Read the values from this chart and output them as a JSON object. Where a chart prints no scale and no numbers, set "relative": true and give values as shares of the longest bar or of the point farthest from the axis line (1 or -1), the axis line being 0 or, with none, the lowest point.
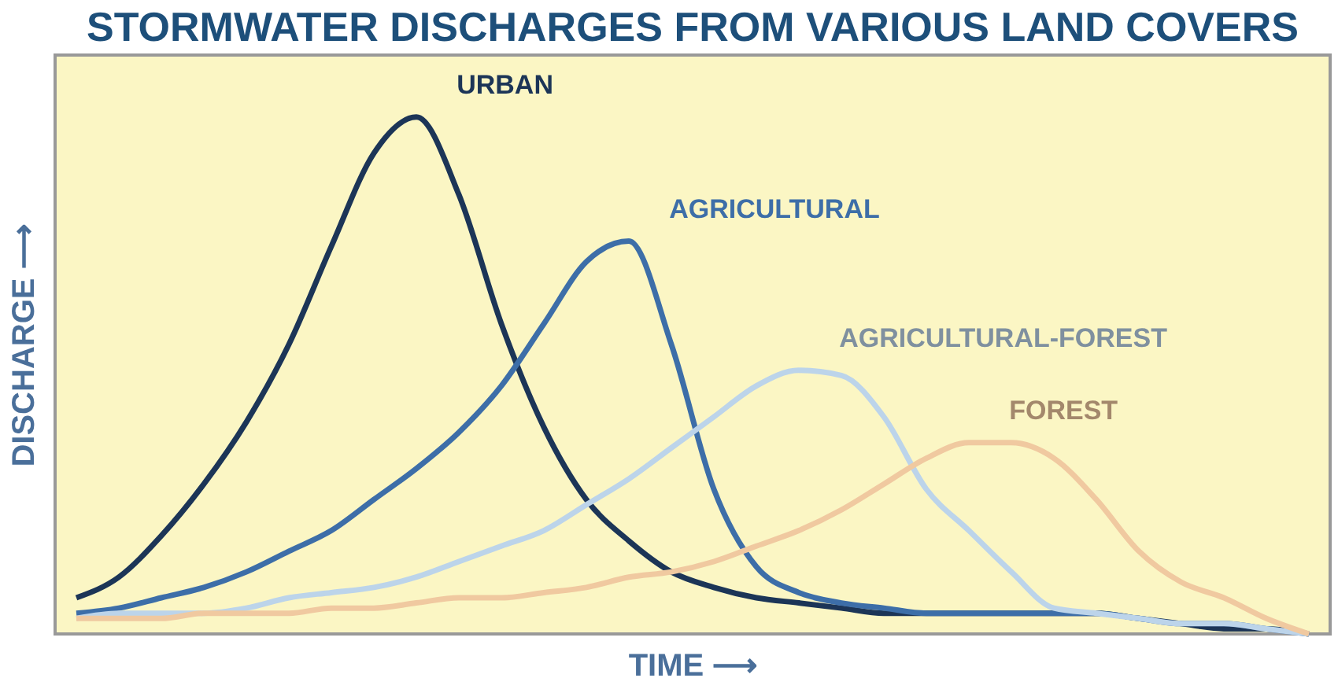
{
  "chart_data": {
    "type": "line",
    "title": "STORMWATER DISCHARGES FROM VARIOUS LAND COVERS",
    "xlabel": "TIME ⟶",
    "ylabel": "DISCHARGE ⟶",
    "relative": true,
    "grid": false,
    "marker": "none",
    "line_style": "solid",
    "categories": [
      null,
      null,
      null,
      null,
      null,
      null,
      null,
      null,
      null,
      null,
      null,
      null,
      null,
      null,
      null,
      null,
      null,
      null,
      null,
      null,
      null,
      null,
      null,
      null,
      null,
      null,
      null,
      null,
      null,
      null
    ],
    "series": [
      {
        "name": "URBAN",
        "color": "#1c3557",
        "values": [
          0.07,
          0.11,
          0.19,
          0.29,
          0.41,
          0.56,
          0.75,
          0.93,
          1.0,
          0.85,
          0.6,
          0.4,
          0.26,
          0.18,
          0.12,
          0.09,
          0.07,
          0.06,
          0.05,
          0.04,
          0.04,
          0.04,
          0.04,
          0.04,
          0.04,
          0.03,
          0.02,
          0.01,
          0.01,
          0
        ]
      },
      {
        "name": "AGRICULTURAL",
        "color": "#3d6ea8",
        "values": [
          0.04,
          0.05,
          0.07,
          0.09,
          0.12,
          0.16,
          0.2,
          0.26,
          0.32,
          0.39,
          0.48,
          0.6,
          0.72,
          0.76,
          0.56,
          0.28,
          0.13,
          0.08,
          0.06,
          0.05,
          0.04,
          0.04,
          0.04,
          0.04,
          0.04,
          0.03,
          0.02,
          0.02,
          0.01,
          0
        ]
      },
      {
        "name": "AGRICULTURAL-FOREST",
        "color": "#bcd4ea",
        "values": [
          0.03,
          0.04,
          0.04,
          0.04,
          0.05,
          0.07,
          0.08,
          0.09,
          0.11,
          0.14,
          0.17,
          0.2,
          0.25,
          0.3,
          0.36,
          0.42,
          0.48,
          0.51,
          0.5,
          0.42,
          0.28,
          0.2,
          0.12,
          0.05,
          0.04,
          0.03,
          0.02,
          0.02,
          0.01,
          0
        ]
      },
      {
        "name": "FOREST",
        "color": "#f0c9a0",
        "values": [
          0.03,
          0.03,
          0.03,
          0.04,
          0.04,
          0.04,
          0.05,
          0.05,
          0.06,
          0.07,
          0.07,
          0.08,
          0.09,
          0.11,
          0.12,
          0.14,
          0.17,
          0.2,
          0.24,
          0.29,
          0.34,
          0.37,
          0.37,
          0.34,
          0.26,
          0.16,
          0.1,
          0.07,
          0.03,
          0
        ]
      }
    ]
  }
}
